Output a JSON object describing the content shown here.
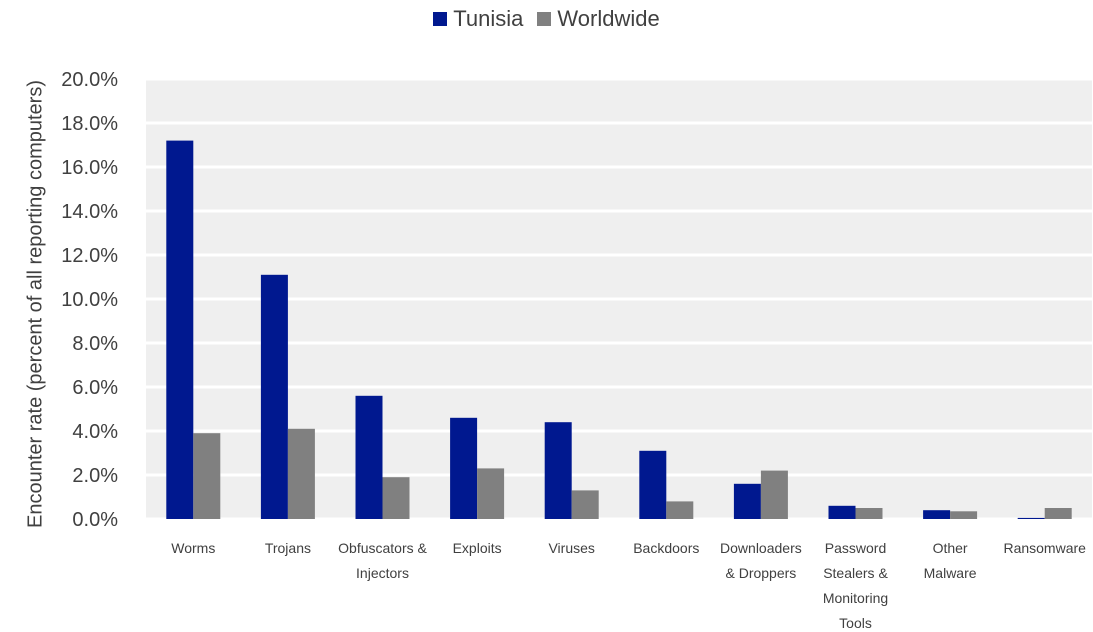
{
  "chart_data": {
    "type": "bar",
    "categories": [
      "Worms",
      "Trojans",
      "Obfuscators & Injectors",
      "Exploits",
      "Viruses",
      "Backdoors",
      "Downloaders & Droppers",
      "Password Stealers & Monitoring Tools",
      "Other Malware",
      "Ransomware"
    ],
    "category_lines": [
      [
        "Worms"
      ],
      [
        "Trojans"
      ],
      [
        "Obfuscators &",
        "Injectors"
      ],
      [
        "Exploits"
      ],
      [
        "Viruses"
      ],
      [
        "Backdoors"
      ],
      [
        "Downloaders",
        "& Droppers"
      ],
      [
        "Password",
        "Stealers &",
        "Monitoring",
        "Tools"
      ],
      [
        "Other",
        "Malware"
      ],
      [
        "Ransomware"
      ]
    ],
    "series": [
      {
        "name": "Tunisia",
        "color": "#00188F",
        "values": [
          17.2,
          11.1,
          5.6,
          4.6,
          4.4,
          3.1,
          1.6,
          0.6,
          0.4,
          0.05
        ]
      },
      {
        "name": "Worldwide",
        "color": "#808080",
        "values": [
          3.9,
          4.1,
          1.9,
          2.3,
          1.3,
          0.8,
          2.2,
          0.5,
          0.35,
          0.5
        ]
      }
    ],
    "ylabel": "Encounter rate (percent of all reporting computers)",
    "xlabel": "",
    "ylim": [
      0,
      20
    ],
    "yticks": [
      "0.0%",
      "2.0%",
      "4.0%",
      "6.0%",
      "8.0%",
      "10.0%",
      "12.0%",
      "14.0%",
      "16.0%",
      "18.0%",
      "20.0%"
    ],
    "grid": true,
    "legend_position": "top-center"
  }
}
